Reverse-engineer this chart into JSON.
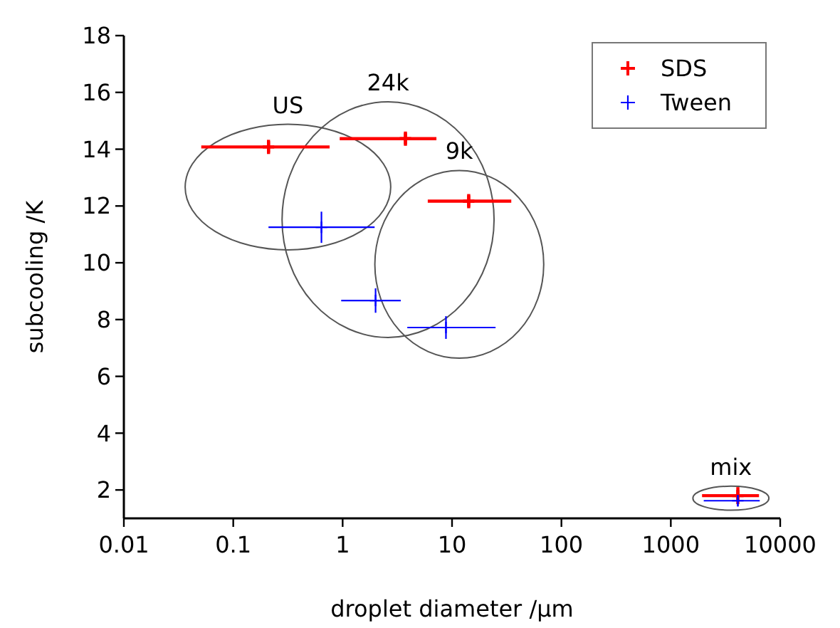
{
  "chart_data": {
    "type": "scatter",
    "xlabel": "droplet diameter /µm",
    "ylabel": "subcooling /K",
    "log": "x",
    "xlim": [
      0.01,
      10000
    ],
    "xticks": [
      0.01,
      0.1,
      1,
      10,
      100,
      1000,
      10000
    ],
    "ylim": [
      1,
      18
    ],
    "yticks": [
      2,
      4,
      6,
      8,
      10,
      12,
      14,
      16,
      18
    ],
    "legend": "top right",
    "marker": "cross",
    "grid": false,
    "series": [
      {
        "name": "SDS",
        "color": "#ff0000",
        "x": [
          0.21,
          3.75,
          14.2,
          4100
        ],
        "values": [
          14.08,
          14.37,
          12.17,
          1.8
        ],
        "errors": [
          0.25,
          0.25,
          0.25,
          0.3
        ],
        "xerrors": [
          [
            0.051,
            0.76
          ],
          [
            0.94,
            7.2
          ],
          [
            6.0,
            34.8
          ],
          [
            1930,
            6400
          ]
        ]
      },
      {
        "name": "Tween",
        "color": "#0000ff",
        "x": [
          0.64,
          2.0,
          8.8,
          4100
        ],
        "values": [
          11.25,
          8.67,
          7.72,
          1.62
        ],
        "errors": [
          0.55,
          0.43,
          0.4,
          0.2
        ],
        "xerrors": [
          [
            0.21,
            1.96
          ],
          [
            0.97,
            3.4
          ],
          [
            3.9,
            25
          ],
          [
            2000,
            6500
          ]
        ]
      }
    ],
    "annotations": [
      "US",
      "24k",
      "9k",
      "mix"
    ]
  }
}
